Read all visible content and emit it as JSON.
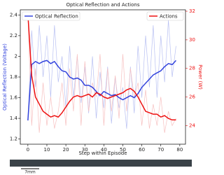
{
  "chart_data": {
    "type": "line",
    "title": "Optical Reflection and Actions",
    "x_label": "Step within Episode",
    "y_label": "Optical Reflection (Voltage)",
    "y2_label": "Power (W)",
    "x": [
      0,
      2,
      4,
      6,
      8,
      10,
      12,
      14,
      16,
      18,
      20,
      22,
      24,
      26,
      28,
      30,
      32,
      34,
      36,
      38,
      40,
      42,
      44,
      46,
      48,
      50,
      52,
      54,
      56,
      58,
      60,
      62,
      64,
      66,
      68,
      70,
      72,
      74,
      76,
      78
    ],
    "xlim": [
      -4,
      83
    ],
    "xticks": [
      0,
      10,
      20,
      30,
      40,
      50,
      60,
      70,
      80
    ],
    "ylim": [
      1.15,
      2.45
    ],
    "yticks": [
      1.2,
      1.4,
      1.6,
      1.8,
      2.0,
      2.2,
      2.4
    ],
    "y2lim": [
      22.7,
      32.1
    ],
    "y2ticks": [
      24,
      26,
      28,
      30,
      32
    ],
    "y_color": "#3344dd",
    "y2_color": "#ee1111",
    "series": [
      {
        "color": "#b8c0f2",
        "values": [
          1.38,
          2.25,
          1.7,
          2.3,
          1.8,
          2.2,
          1.6,
          2.3,
          1.75,
          2.0,
          1.5,
          2.1,
          1.6,
          2.0,
          1.55,
          1.9,
          1.45,
          2.0,
          1.4,
          1.85,
          1.5,
          1.9,
          1.35,
          1.8,
          1.5,
          1.7,
          1.3,
          1.9,
          1.45,
          2.1,
          1.6,
          2.2,
          1.7,
          2.3,
          1.6,
          2.2,
          1.75,
          2.35,
          1.8,
          2.1
        ]
      },
      {
        "color": "#f7c0c0",
        "axis": "y2",
        "values": [
          31.8,
          24,
          28,
          23.5,
          27,
          24,
          26,
          23.8,
          25,
          27,
          24,
          28,
          25,
          29,
          24,
          28.5,
          25,
          27,
          26,
          29,
          24,
          28,
          25,
          27.5,
          24.5,
          29,
          25,
          28,
          26,
          27,
          24,
          26.5,
          23.8,
          25.5,
          24,
          26,
          23.5,
          25,
          24,
          24.5
        ]
      },
      {
        "name": "Optical Reflection",
        "color": "#3344dd",
        "legend_loc": "upper left",
        "values": [
          1.38,
          1.92,
          1.95,
          1.93,
          1.95,
          1.96,
          1.93,
          1.95,
          1.9,
          1.86,
          1.85,
          1.8,
          1.78,
          1.79,
          1.77,
          1.72,
          1.72,
          1.7,
          1.66,
          1.62,
          1.66,
          1.64,
          1.62,
          1.63,
          1.6,
          1.58,
          1.6,
          1.62,
          1.6,
          1.64,
          1.7,
          1.74,
          1.78,
          1.82,
          1.84,
          1.86,
          1.9,
          1.93,
          1.92,
          1.96
        ]
      },
      {
        "name": "Actions",
        "color": "#ee1111",
        "axis": "y2",
        "legend_loc": "upper right",
        "values": [
          31.8,
          27.5,
          26.0,
          25.5,
          25.0,
          24.8,
          24.6,
          24.7,
          24.6,
          24.9,
          25.3,
          25.7,
          26.0,
          26.1,
          26.0,
          26.1,
          26.2,
          26.0,
          26.3,
          26.2,
          26.0,
          25.9,
          26.0,
          26.1,
          26.2,
          26.3,
          26.5,
          26.6,
          26.4,
          26.0,
          25.5,
          25.0,
          24.9,
          24.8,
          24.8,
          24.6,
          24.7,
          24.5,
          24.4,
          24.4
        ]
      }
    ],
    "annotation": "7mm"
  }
}
